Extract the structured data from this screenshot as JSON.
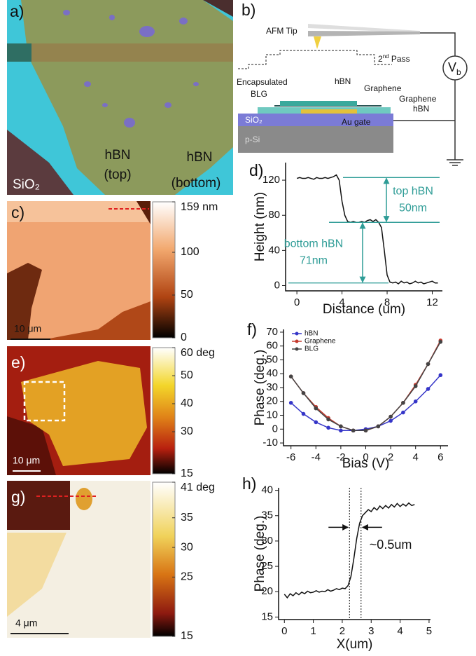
{
  "panels": {
    "a": {
      "label": "a)",
      "sio2": "SiO₂",
      "hbn_top": [
        "hBN",
        "(top)"
      ],
      "hbn_bottom": [
        "hBN",
        "(bottom)"
      ]
    },
    "b": {
      "label": "b)",
      "afm_tip": "AFM Tip",
      "pass": {
        "main": "2",
        "sup": "nd",
        "rest": " Pass"
      },
      "vb": {
        "main": "V",
        "sub": "b"
      },
      "encapsulated": [
        "Encapsulated",
        "BLG"
      ],
      "hbn_top": "hBN",
      "graphene_top": "Graphene",
      "graphene_bottom": "Graphene",
      "hbn_bottom": "hBN",
      "sio2": "SiO₂",
      "au_gate": "Au gate",
      "psi": "p-Si"
    },
    "c": {
      "label": "c)",
      "scale_bar": "10 μm",
      "colorbar": {
        "range": [
          0,
          159
        ],
        "ticks": [
          {
            "value": 159,
            "label": "159 nm"
          },
          100,
          50,
          0
        ]
      }
    },
    "e": {
      "label": "e)",
      "scale_bar": "10 μm",
      "colorbar": {
        "range": [
          15,
          60
        ],
        "ticks": [
          {
            "value": 60,
            "label": "60 deg"
          },
          50,
          40,
          30,
          15
        ]
      }
    },
    "g": {
      "label": "g)",
      "scale_bar": "4 μm",
      "colorbar": {
        "range": [
          15,
          41
        ],
        "ticks": [
          {
            "value": 41,
            "label": "41 deg"
          },
          35,
          30,
          25,
          15
        ]
      }
    }
  },
  "chart_data": [
    {
      "type": "line",
      "label": "d)",
      "xlabel": "Distance (um)",
      "ylabel": "Height (nm)",
      "x": [
        0,
        0.25,
        0.5,
        0.75,
        1,
        1.25,
        1.5,
        1.75,
        2,
        2.25,
        2.5,
        2.75,
        3,
        3.25,
        3.5,
        3.75,
        4,
        4.25,
        4.5,
        4.75,
        5,
        5.25,
        5.5,
        5.75,
        6,
        6.25,
        6.5,
        6.75,
        7,
        7.25,
        7.5,
        7.75,
        8,
        8.25,
        8.5,
        8.75,
        9,
        9.25,
        9.5,
        9.75,
        10,
        10.25,
        10.5,
        10.75,
        11,
        11.25,
        11.5,
        11.75,
        12,
        12.25,
        12.5
      ],
      "series": [
        {
          "color": "#111111",
          "values": [
            122,
            123,
            122,
            122,
            123,
            122,
            121,
            123,
            122,
            122,
            123,
            122,
            123,
            124,
            126,
            120,
            96,
            80,
            73,
            72,
            73,
            72,
            72,
            73,
            72,
            74,
            75,
            73,
            75,
            72,
            66,
            40,
            12,
            4,
            3,
            4,
            2,
            5,
            3,
            4,
            2,
            3,
            5,
            3,
            4,
            2,
            3,
            4,
            5,
            3,
            3
          ]
        }
      ],
      "xlim": [
        -1,
        12.9
      ],
      "ylim": [
        -6,
        140
      ],
      "xticks": [
        0,
        4,
        8,
        12
      ],
      "yticks": [
        0,
        40,
        80,
        120
      ],
      "annotation_color": "#2e9c96",
      "annotations": [
        {
          "text": [
            "top hBN",
            "50nm"
          ],
          "from": 123,
          "to": 72
        },
        {
          "text": [
            "bottom hBN",
            "71nm"
          ],
          "from": 72,
          "to": 3
        }
      ]
    },
    {
      "type": "line",
      "label": "f)",
      "xlabel": "Bias (V)",
      "ylabel": "Phase (deg.)",
      "x": [
        -6,
        -5,
        -4,
        -3,
        -2,
        -1,
        0,
        1,
        2,
        3,
        4,
        5,
        6
      ],
      "series": [
        {
          "name": "hBN",
          "color": "#3535c8",
          "values": [
            19,
            11,
            5,
            1,
            -1,
            -1,
            0,
            2,
            6,
            12,
            20,
            29,
            39
          ]
        },
        {
          "name": "Graphene",
          "color": "#c43a2e",
          "values": [
            38,
            26,
            16,
            8,
            2,
            -1,
            -1,
            2,
            9,
            19,
            32,
            47,
            64
          ]
        },
        {
          "name": "BLG",
          "color": "#444444",
          "values": [
            38,
            26,
            15,
            7,
            2,
            -1,
            -1,
            2,
            9,
            19,
            31,
            47,
            63
          ]
        }
      ],
      "markers": true,
      "legend": "upper left",
      "xlim": [
        -6.6,
        6.6
      ],
      "ylim": [
        -12,
        72
      ],
      "xticks": [
        -6,
        -4,
        -2,
        0,
        2,
        4,
        6
      ],
      "yticks": [
        -10,
        0,
        10,
        20,
        30,
        40,
        50,
        60,
        70
      ]
    },
    {
      "type": "line",
      "label": "h)",
      "xlabel": "X(um)",
      "ylabel": "Phase (deg.)",
      "x": [
        0,
        0.1,
        0.2,
        0.3,
        0.4,
        0.5,
        0.6,
        0.7,
        0.8,
        0.9,
        1,
        1.1,
        1.2,
        1.3,
        1.4,
        1.5,
        1.6,
        1.7,
        1.8,
        1.9,
        2,
        2.1,
        2.2,
        2.3,
        2.4,
        2.5,
        2.6,
        2.7,
        2.8,
        2.9,
        3,
        3.1,
        3.2,
        3.3,
        3.4,
        3.5,
        3.6,
        3.7,
        3.8,
        3.9,
        4,
        4.1,
        4.2,
        4.3,
        4.4,
        4.5
      ],
      "series": [
        {
          "color": "#111111",
          "values": [
            19.5,
            18.8,
            19.6,
            19.2,
            19.8,
            19.4,
            19.9,
            19.6,
            20.1,
            19.8,
            19.9,
            20.2,
            19.9,
            20.1,
            20,
            20.4,
            20.1,
            20.3,
            20.6,
            20.4,
            20.7,
            20.6,
            21.2,
            23,
            26.5,
            30.5,
            33.5,
            35,
            35.6,
            36.2,
            35.8,
            36.6,
            36.1,
            36.9,
            36.4,
            37,
            36.5,
            37.2,
            36.7,
            37.4,
            36.8,
            37.3,
            36.9,
            37.5,
            37,
            37.2
          ]
        }
      ],
      "vlines": [
        2.25,
        2.65
      ],
      "annotation": "~0.5um",
      "xlim": [
        -0.2,
        5.05
      ],
      "ylim": [
        14.5,
        40.5
      ],
      "xticks": [
        0,
        1,
        2,
        3,
        4,
        5
      ],
      "yticks": [
        15,
        20,
        25,
        30,
        35,
        40
      ]
    }
  ]
}
